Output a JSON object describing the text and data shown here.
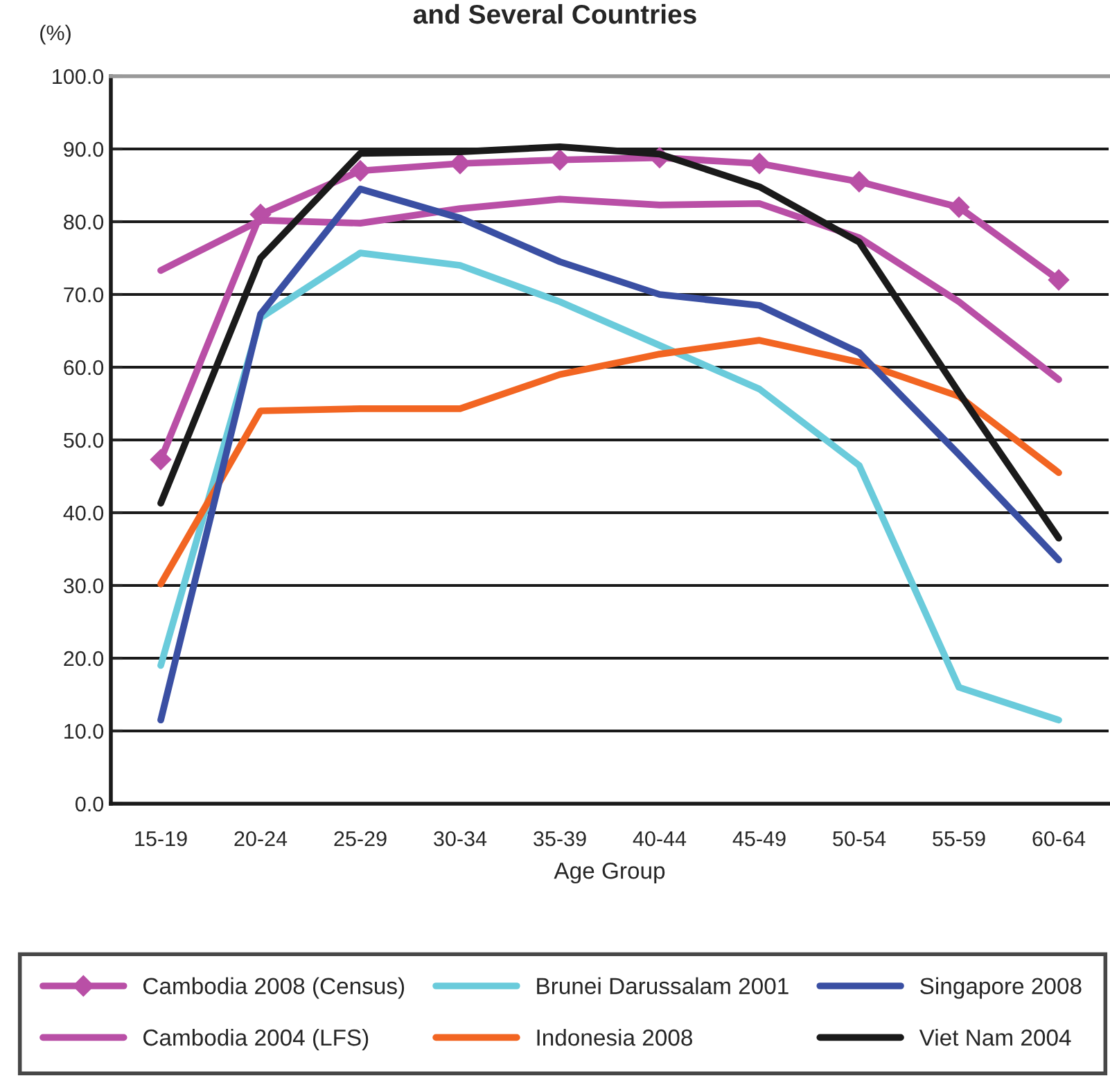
{
  "chart_data": {
    "type": "line",
    "title": "and Several Countries",
    "xlabel": "Age Group",
    "ylabel": "(%)",
    "categories": [
      "15-19",
      "20-24",
      "25-29",
      "30-34",
      "35-39",
      "40-44",
      "45-49",
      "50-54",
      "55-59",
      "60-64"
    ],
    "series": [
      {
        "name": "Cambodia 2008 (Census)",
        "color": "#b94fa6",
        "marker": "diamond",
        "values": [
          47.3,
          81.0,
          87.0,
          88.0,
          88.5,
          88.8,
          88.0,
          85.5,
          82.0,
          72.0
        ]
      },
      {
        "name": "Cambodia 2004 (LFS)",
        "color": "#b94fa6",
        "values": [
          73.3,
          80.2,
          79.8,
          81.8,
          83.1,
          82.3,
          82.5,
          77.8,
          69.0,
          58.3
        ]
      },
      {
        "name": "Brunei Darussalam 2001",
        "color": "#6acbdb",
        "values": [
          19.0,
          66.8,
          75.7,
          74.0,
          69.0,
          63.0,
          57.0,
          46.5,
          16.0,
          11.5
        ]
      },
      {
        "name": "Indonesia 2008",
        "color": "#f26522",
        "values": [
          30.2,
          54.0,
          54.3,
          54.3,
          59.0,
          61.8,
          63.7,
          60.7,
          56.0,
          45.5
        ]
      },
      {
        "name": "Singapore 2008",
        "color": "#3a4fa3",
        "values": [
          11.5,
          67.3,
          84.5,
          80.5,
          74.5,
          70.0,
          68.5,
          62.0,
          48.0,
          33.5
        ]
      },
      {
        "name": "Viet Nam 2004",
        "color": "#1a1a1a",
        "values": [
          41.3,
          75.0,
          89.4,
          89.6,
          90.3,
          89.3,
          84.8,
          77.2,
          56.5,
          36.5
        ]
      }
    ],
    "ylim": [
      0,
      100
    ],
    "yticks": [
      {
        "value": 0,
        "label": "0.0"
      },
      {
        "value": 10,
        "label": "10.0"
      },
      {
        "value": 20,
        "label": "20.0"
      },
      {
        "value": 30,
        "label": "30.0"
      },
      {
        "value": 40,
        "label": "40.0"
      },
      {
        "value": 50,
        "label": "50.0"
      },
      {
        "value": 60,
        "label": "60.0"
      },
      {
        "value": 70,
        "label": "70.0"
      },
      {
        "value": 80,
        "label": "80.0"
      },
      {
        "value": 90,
        "label": "90.0"
      },
      {
        "value": 100,
        "label": "100.0"
      }
    ],
    "grid": "y",
    "legend": "bottom",
    "line_style": "solid"
  }
}
